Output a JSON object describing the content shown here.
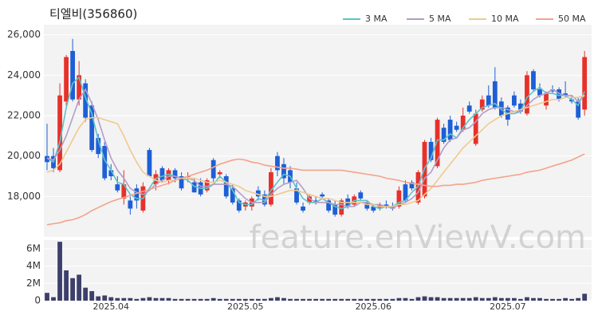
{
  "chart_data": {
    "type": "candlestick",
    "title": "티엘비(356860)",
    "watermark": "feature.enViewV.com",
    "up_color": "#e8302a",
    "down_color": "#1e5fd6",
    "categories": [
      null,
      null,
      null,
      null,
      null,
      null,
      null,
      null,
      null,
      null,
      "2025.04",
      null,
      null,
      null,
      null,
      null,
      null,
      null,
      null,
      null,
      null,
      null,
      null,
      null,
      null,
      null,
      null,
      null,
      null,
      null,
      null,
      "2025.05",
      null,
      null,
      null,
      null,
      null,
      null,
      null,
      null,
      null,
      null,
      null,
      null,
      null,
      null,
      null,
      null,
      null,
      null,
      null,
      "2025.06",
      null,
      null,
      null,
      null,
      null,
      null,
      null,
      null,
      null,
      null,
      null,
      null,
      null,
      null,
      null,
      null,
      null,
      null,
      null,
      null,
      "2025.07",
      null,
      null,
      null,
      null,
      null,
      null,
      null,
      null,
      null,
      null,
      null,
      null
    ],
    "open": [
      20000,
      20000,
      19300,
      22700,
      25200,
      22800,
      23600,
      22500,
      20900,
      20500,
      19300,
      18600,
      17900,
      17800,
      18400,
      17300,
      20300,
      18600,
      19400,
      18800,
      19300,
      19000,
      19000,
      18700,
      18700,
      18300,
      19800,
      19100,
      19000,
      18400,
      17800,
      17500,
      17500,
      18300,
      18100,
      17600,
      20000,
      19600,
      19300,
      18400,
      17500,
      17700,
      17800,
      18100,
      17800,
      17600,
      17100,
      17900,
      17600,
      18200,
      17700,
      17500,
      17400,
      17600,
      17500,
      17500,
      18600,
      18700,
      17700,
      18000,
      20700,
      19500,
      21400,
      21800,
      21500,
      21300,
      22500,
      20600,
      22300,
      23000,
      23700,
      22700,
      22400,
      23000,
      22600,
      22100,
      24200,
      23300,
      22500,
      23300,
      23300,
      23100,
      22800,
      22700,
      22300
    ],
    "high": [
      21600,
      20400,
      23600,
      25000,
      25800,
      24700,
      23800,
      22700,
      21100,
      20700,
      19600,
      19000,
      19300,
      18000,
      18600,
      18700,
      20400,
      19300,
      19500,
      19400,
      19400,
      19200,
      19200,
      18900,
      18900,
      18900,
      19900,
      19300,
      19100,
      18600,
      17900,
      17800,
      18000,
      18500,
      18300,
      19400,
      20200,
      19900,
      19500,
      18700,
      17700,
      18100,
      18000,
      18200,
      17900,
      17800,
      17900,
      18100,
      18100,
      18300,
      17800,
      17600,
      17700,
      17800,
      17700,
      18500,
      18800,
      18800,
      19300,
      20800,
      20900,
      21900,
      21600,
      22000,
      21700,
      22400,
      22700,
      22300,
      23000,
      23500,
      24400,
      22900,
      22500,
      23200,
      22800,
      24200,
      24300,
      23600,
      23200,
      23500,
      23400,
      23700,
      23000,
      22900,
      25200
    ],
    "low": [
      19300,
      19200,
      19200,
      22500,
      22700,
      22500,
      21700,
      20200,
      19900,
      18800,
      18800,
      18200,
      17600,
      17100,
      17400,
      17200,
      19000,
      18300,
      18700,
      18600,
      18700,
      18300,
      18700,
      18200,
      18000,
      18200,
      18700,
      18900,
      17900,
      17600,
      17200,
      17300,
      17300,
      17800,
      17500,
      17500,
      19000,
      18600,
      18400,
      17600,
      17200,
      17600,
      17600,
      17900,
      17200,
      17000,
      17000,
      17400,
      17500,
      17800,
      17300,
      17200,
      17300,
      17400,
      17300,
      17400,
      17700,
      18300,
      17600,
      17900,
      19700,
      19400,
      20600,
      20700,
      21200,
      21200,
      22100,
      20500,
      22200,
      22400,
      22300,
      21900,
      21500,
      22400,
      22100,
      22000,
      23200,
      22900,
      22300,
      23100,
      22700,
      22900,
      22600,
      21800,
      22000
    ],
    "close": [
      19700,
      19400,
      23000,
      24900,
      22800,
      24000,
      21900,
      20300,
      20100,
      18900,
      19000,
      18300,
      18600,
      17400,
      17800,
      18500,
      19000,
      19100,
      18800,
      19300,
      18900,
      18400,
      19000,
      18200,
      18100,
      18800,
      18900,
      19200,
      18000,
      17700,
      17300,
      17700,
      17900,
      18000,
      17600,
      19200,
      19300,
      18900,
      18700,
      17700,
      17300,
      18000,
      17700,
      18000,
      17300,
      17100,
      17800,
      17500,
      18000,
      17900,
      17400,
      17300,
      17600,
      17500,
      17400,
      18300,
      17800,
      18400,
      19200,
      20700,
      19800,
      21800,
      20700,
      20800,
      21300,
      22000,
      22200,
      22100,
      22800,
      22500,
      22400,
      22000,
      21800,
      22500,
      22200,
      24000,
      23300,
      23000,
      23100,
      23200,
      22800,
      23000,
      22700,
      21900,
      24900
    ],
    "series": [
      {
        "name": "3 MA",
        "color": "#5cc3c9",
        "values": [
          19900,
          19700,
          20700,
          22400,
          23600,
          23900,
          22900,
          22100,
          20800,
          19800,
          19300,
          18700,
          18600,
          18100,
          17900,
          17900,
          18400,
          18900,
          19000,
          19100,
          19000,
          18900,
          18800,
          18500,
          18400,
          18400,
          18600,
          19000,
          18700,
          18300,
          17700,
          17600,
          17600,
          17900,
          17800,
          18300,
          18700,
          19100,
          19000,
          18400,
          17900,
          17700,
          17700,
          17900,
          17700,
          17500,
          17400,
          17500,
          17800,
          17800,
          17800,
          17500,
          17400,
          17500,
          17500,
          17700,
          17800,
          18200,
          18500,
          19400,
          19900,
          20800,
          20800,
          21100,
          20900,
          21400,
          21800,
          22100,
          22400,
          22500,
          22600,
          22300,
          22100,
          22100,
          22200,
          22900,
          23200,
          23400,
          23100,
          23100,
          23000,
          23000,
          22800,
          22500,
          23200
        ]
      },
      {
        "name": "5 MA",
        "color": "#b39dc9",
        "values": [
          19900,
          19800,
          20300,
          21000,
          21900,
          22800,
          23300,
          22600,
          21800,
          20800,
          19900,
          19300,
          18900,
          18400,
          18200,
          18100,
          18300,
          18600,
          18800,
          19000,
          19000,
          18900,
          18900,
          18800,
          18500,
          18500,
          18600,
          18600,
          18600,
          18500,
          18200,
          17900,
          17700,
          17700,
          17700,
          18100,
          18400,
          18600,
          18700,
          18800,
          18400,
          17900,
          17700,
          17700,
          17700,
          17600,
          17600,
          17500,
          17500,
          17700,
          17700,
          17600,
          17600,
          17500,
          17400,
          17600,
          17700,
          17900,
          18200,
          18900,
          19200,
          19800,
          20400,
          20800,
          20900,
          21300,
          21400,
          21700,
          22100,
          22300,
          22400,
          22400,
          22300,
          22200,
          22200,
          22500,
          22800,
          23000,
          23100,
          23300,
          23100,
          23000,
          23000,
          22700,
          23000
        ]
      },
      {
        "name": "10 MA",
        "color": "#f1c98f",
        "values": [
          19200,
          19300,
          19600,
          20200,
          20800,
          21400,
          21800,
          21900,
          21900,
          21800,
          21700,
          21600,
          21000,
          20300,
          19700,
          19200,
          19000,
          18800,
          18700,
          18800,
          18800,
          18900,
          18900,
          18900,
          18800,
          18700,
          18700,
          18800,
          18700,
          18600,
          18500,
          18300,
          18200,
          18100,
          18000,
          18000,
          18100,
          18200,
          18300,
          18300,
          18200,
          18100,
          18000,
          17900,
          17900,
          17800,
          17700,
          17700,
          17700,
          17700,
          17600,
          17600,
          17500,
          17500,
          17500,
          17600,
          17600,
          17700,
          17800,
          18100,
          18400,
          18800,
          19200,
          19600,
          20000,
          20400,
          20700,
          21000,
          21300,
          21600,
          21800,
          22000,
          22100,
          22200,
          22300,
          22400,
          22500,
          22600,
          22700,
          22800,
          22800,
          22900,
          22900,
          22900,
          23000
        ]
      },
      {
        "name": "50 MA",
        "color": "#f4a38b",
        "values": [
          16600,
          16650,
          16700,
          16800,
          16850,
          16950,
          17100,
          17300,
          17450,
          17600,
          17750,
          17850,
          17950,
          18050,
          18150,
          18250,
          18350,
          18450,
          18550,
          18650,
          18800,
          18900,
          19000,
          19100,
          19200,
          19300,
          19450,
          19600,
          19700,
          19800,
          19850,
          19800,
          19700,
          19650,
          19550,
          19500,
          19450,
          19400,
          19400,
          19350,
          19300,
          19300,
          19300,
          19300,
          19300,
          19300,
          19300,
          19250,
          19200,
          19150,
          19100,
          19050,
          19000,
          18900,
          18850,
          18800,
          18700,
          18650,
          18600,
          18550,
          18500,
          18500,
          18550,
          18550,
          18600,
          18600,
          18650,
          18700,
          18800,
          18850,
          18900,
          18950,
          19000,
          19050,
          19100,
          19200,
          19250,
          19300,
          19400,
          19500,
          19600,
          19700,
          19800,
          19950,
          20100
        ]
      }
    ],
    "ylim": [
      16000,
      26500
    ],
    "yticks": [
      {
        "value": 18000,
        "label": "18,000"
      },
      {
        "value": 20000,
        "label": "20,000"
      },
      {
        "value": 22000,
        "label": "22,000"
      },
      {
        "value": 24000,
        "label": "24,000"
      },
      {
        "value": 26000,
        "label": "26,000"
      }
    ],
    "grid": true,
    "volume": {
      "color": "#3d3f6b",
      "ylim": [
        0,
        7000000
      ],
      "yticks": [
        0,
        {
          "value": 2000000,
          "label": "2M"
        },
        {
          "value": 4000000,
          "label": "4M"
        },
        {
          "value": 6000000,
          "label": "6M"
        }
      ],
      "values": [
        900000,
        400000,
        6800000,
        3500000,
        2600000,
        3000000,
        1500000,
        1100000,
        500000,
        600000,
        400000,
        300000,
        300000,
        300000,
        200000,
        300000,
        400000,
        300000,
        300000,
        300000,
        200000,
        200000,
        200000,
        200000,
        200000,
        200000,
        300000,
        200000,
        200000,
        200000,
        200000,
        200000,
        200000,
        200000,
        200000,
        300000,
        400000,
        300000,
        200000,
        200000,
        200000,
        200000,
        200000,
        200000,
        200000,
        200000,
        200000,
        200000,
        200000,
        200000,
        200000,
        200000,
        200000,
        200000,
        200000,
        300000,
        300000,
        200000,
        400000,
        500000,
        400000,
        400000,
        300000,
        300000,
        300000,
        300000,
        300000,
        400000,
        300000,
        300000,
        400000,
        300000,
        300000,
        300000,
        200000,
        400000,
        300000,
        300000,
        200000,
        200000,
        200000,
        300000,
        200000,
        300000,
        800000
      ]
    }
  }
}
